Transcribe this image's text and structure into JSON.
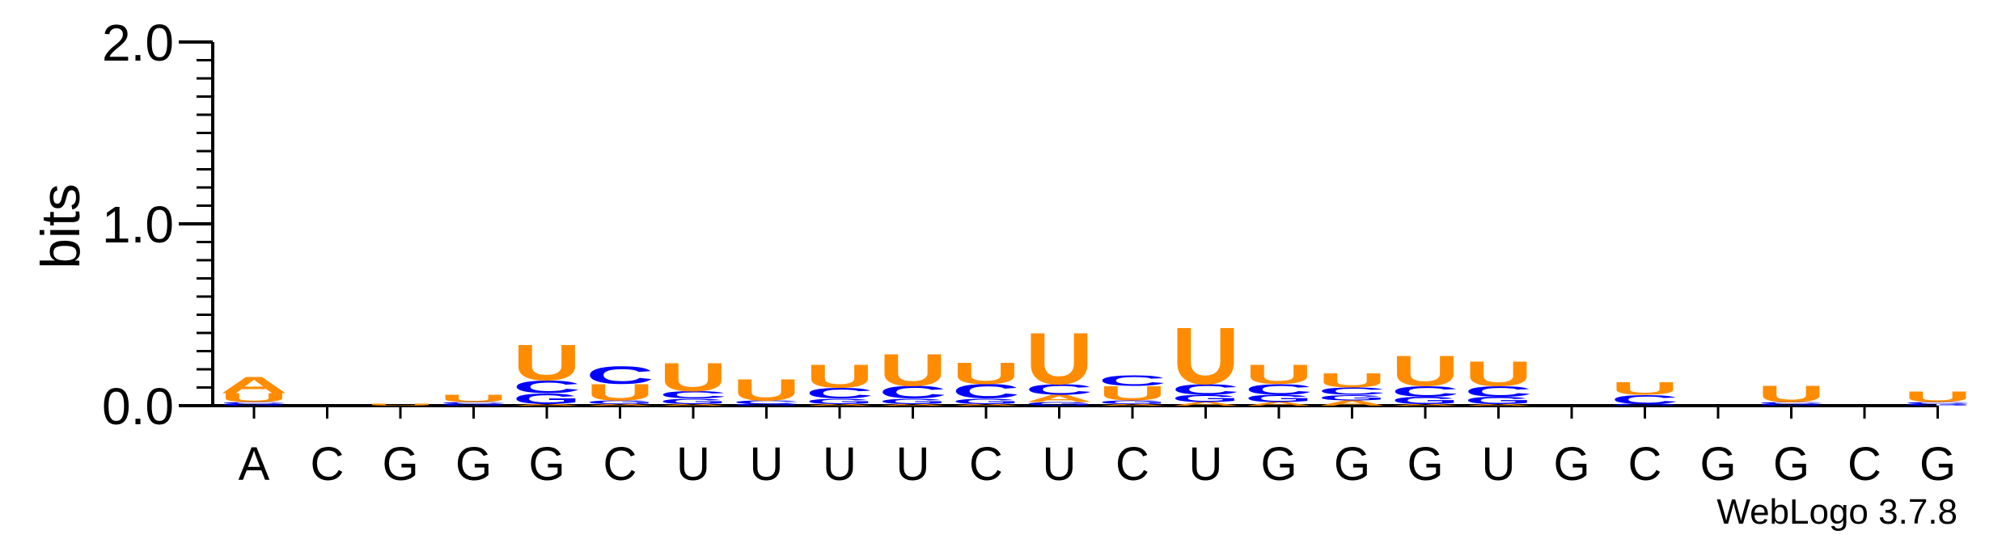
{
  "chart_data": {
    "type": "sequence-logo",
    "ylabel": "bits",
    "ylim": [
      0,
      2.0
    ],
    "yticks": [
      "0.0",
      "1.0",
      "2.0"
    ],
    "ytick_values": [
      0,
      1,
      2
    ],
    "minor_tick_step": 0.1,
    "credit": "WebLogo 3.7.8",
    "colors": {
      "A": "#FF8C00",
      "U": "#FF8C00",
      "C": "#0000FF",
      "G": "#0000FF"
    },
    "positions": [
      {
        "label": "A",
        "stack": [
          {
            "letter": "G",
            "bits": 0.01
          },
          {
            "letter": "C",
            "bits": 0.01
          },
          {
            "letter": "U",
            "bits": 0.05
          },
          {
            "letter": "A",
            "bits": 0.09
          }
        ]
      },
      {
        "label": "C",
        "stack": []
      },
      {
        "label": "G",
        "stack": [
          {
            "letter": "U",
            "bits": 0.01
          }
        ]
      },
      {
        "label": "G",
        "stack": [
          {
            "letter": "G",
            "bits": 0.01
          },
          {
            "letter": "C",
            "bits": 0.01
          },
          {
            "letter": "U",
            "bits": 0.04
          }
        ]
      },
      {
        "label": "G",
        "stack": [
          {
            "letter": "A",
            "bits": 0.01
          },
          {
            "letter": "G",
            "bits": 0.06
          },
          {
            "letter": "C",
            "bits": 0.07
          },
          {
            "letter": "U",
            "bits": 0.2
          }
        ]
      },
      {
        "label": "C",
        "stack": [
          {
            "letter": "A",
            "bits": 0.01
          },
          {
            "letter": "G",
            "bits": 0.02
          },
          {
            "letter": "U",
            "bits": 0.09
          },
          {
            "letter": "C",
            "bits": 0.1
          }
        ]
      },
      {
        "label": "U",
        "stack": [
          {
            "letter": "A",
            "bits": 0.01
          },
          {
            "letter": "G",
            "bits": 0.03
          },
          {
            "letter": "C",
            "bits": 0.04
          },
          {
            "letter": "U",
            "bits": 0.16
          }
        ]
      },
      {
        "label": "U",
        "stack": [
          {
            "letter": "G",
            "bits": 0.01
          },
          {
            "letter": "C",
            "bits": 0.02
          },
          {
            "letter": "U",
            "bits": 0.12
          }
        ]
      },
      {
        "label": "U",
        "stack": [
          {
            "letter": "A",
            "bits": 0.01
          },
          {
            "letter": "G",
            "bits": 0.03
          },
          {
            "letter": "C",
            "bits": 0.06
          },
          {
            "letter": "U",
            "bits": 0.13
          }
        ]
      },
      {
        "label": "U",
        "stack": [
          {
            "letter": "A",
            "bits": 0.01
          },
          {
            "letter": "G",
            "bits": 0.03
          },
          {
            "letter": "C",
            "bits": 0.07
          },
          {
            "letter": "U",
            "bits": 0.18
          }
        ]
      },
      {
        "label": "C",
        "stack": [
          {
            "letter": "A",
            "bits": 0.01
          },
          {
            "letter": "G",
            "bits": 0.03
          },
          {
            "letter": "C",
            "bits": 0.08
          },
          {
            "letter": "U",
            "bits": 0.12
          }
        ]
      },
      {
        "label": "U",
        "stack": [
          {
            "letter": "G",
            "bits": 0.02
          },
          {
            "letter": "A",
            "bits": 0.04
          },
          {
            "letter": "C",
            "bits": 0.06
          },
          {
            "letter": "U",
            "bits": 0.29
          }
        ]
      },
      {
        "label": "C",
        "stack": [
          {
            "letter": "A",
            "bits": 0.01
          },
          {
            "letter": "G",
            "bits": 0.02
          },
          {
            "letter": "U",
            "bits": 0.08
          },
          {
            "letter": "C",
            "bits": 0.06
          }
        ]
      },
      {
        "label": "U",
        "stack": [
          {
            "letter": "A",
            "bits": 0.02
          },
          {
            "letter": "G",
            "bits": 0.04
          },
          {
            "letter": "C",
            "bits": 0.06
          },
          {
            "letter": "U",
            "bits": 0.32
          }
        ]
      },
      {
        "label": "G",
        "stack": [
          {
            "letter": "A",
            "bits": 0.02
          },
          {
            "letter": "G",
            "bits": 0.04
          },
          {
            "letter": "C",
            "bits": 0.06
          },
          {
            "letter": "U",
            "bits": 0.11
          }
        ]
      },
      {
        "label": "G",
        "stack": [
          {
            "letter": "A",
            "bits": 0.03
          },
          {
            "letter": "G",
            "bits": 0.03
          },
          {
            "letter": "C",
            "bits": 0.04
          },
          {
            "letter": "U",
            "bits": 0.08
          }
        ]
      },
      {
        "label": "G",
        "stack": [
          {
            "letter": "A",
            "bits": 0.01
          },
          {
            "letter": "G",
            "bits": 0.04
          },
          {
            "letter": "C",
            "bits": 0.06
          },
          {
            "letter": "U",
            "bits": 0.17
          }
        ]
      },
      {
        "label": "U",
        "stack": [
          {
            "letter": "A",
            "bits": 0.01
          },
          {
            "letter": "G",
            "bits": 0.04
          },
          {
            "letter": "C",
            "bits": 0.06
          },
          {
            "letter": "U",
            "bits": 0.14
          }
        ]
      },
      {
        "label": "G",
        "stack": []
      },
      {
        "label": "C",
        "stack": [
          {
            "letter": "G",
            "bits": 0.01
          },
          {
            "letter": "C",
            "bits": 0.05
          },
          {
            "letter": "U",
            "bits": 0.07
          }
        ]
      },
      {
        "label": "G",
        "stack": []
      },
      {
        "label": "G",
        "stack": [
          {
            "letter": "G",
            "bits": 0.01
          },
          {
            "letter": "C",
            "bits": 0.01
          },
          {
            "letter": "U",
            "bits": 0.09
          }
        ]
      },
      {
        "label": "C",
        "stack": []
      },
      {
        "label": "G",
        "stack": [
          {
            "letter": "G",
            "bits": 0.01
          },
          {
            "letter": "C",
            "bits": 0.01
          },
          {
            "letter": "U",
            "bits": 0.06
          }
        ]
      }
    ]
  }
}
